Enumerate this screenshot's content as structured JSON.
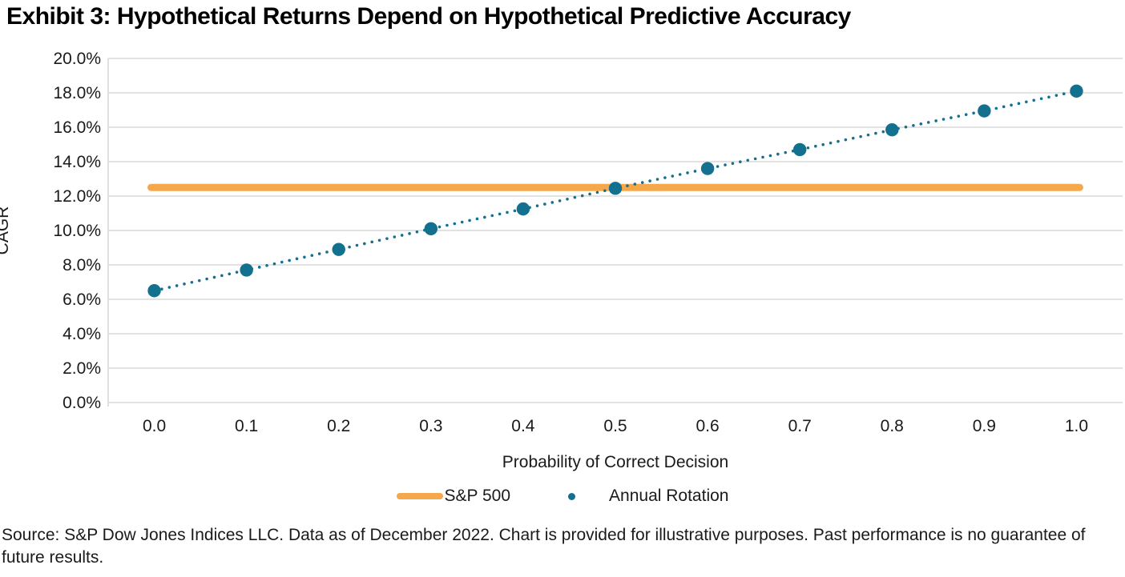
{
  "title": "Exhibit 3: Hypothetical Returns Depend on Hypothetical Predictive Accuracy",
  "source_note": "Source: S&P Dow Jones Indices LLC. Data as of December 2022. Chart is provided for illustrative purposes. Past performance is no guarantee of future results.",
  "colors": {
    "sp500_orange": "#F5A74B",
    "annual_rotation_teal": "#13708E",
    "gridline_gray": "#D9D9D9",
    "text_black": "#1a1a1a"
  },
  "chart_data": {
    "type": "line",
    "title": "Exhibit 3: Hypothetical Returns Depend on Hypothetical Predictive Accuracy",
    "xlabel": "Probability of Correct Decision",
    "ylabel": "CAGR",
    "x": [
      0.0,
      0.1,
      0.2,
      0.3,
      0.4,
      0.5,
      0.6,
      0.7,
      0.8,
      0.9,
      1.0
    ],
    "series": [
      {
        "name": "S&P 500",
        "style": "solid-thick-line",
        "color": "#F5A74B",
        "constant_value_pct": 12.5
      },
      {
        "name": "Annual Rotation",
        "style": "dotted-line-with-markers",
        "color": "#13708E",
        "values_pct": [
          6.5,
          7.7,
          8.9,
          10.1,
          11.25,
          12.45,
          13.6,
          14.7,
          15.85,
          16.95,
          18.1
        ]
      }
    ],
    "ylim": [
      0,
      20
    ],
    "ytick_step": 2,
    "ytick_format": "one-decimal-percent",
    "xtick_format": "one-decimal",
    "grid": "horizontal",
    "legend_position": "bottom-center"
  }
}
